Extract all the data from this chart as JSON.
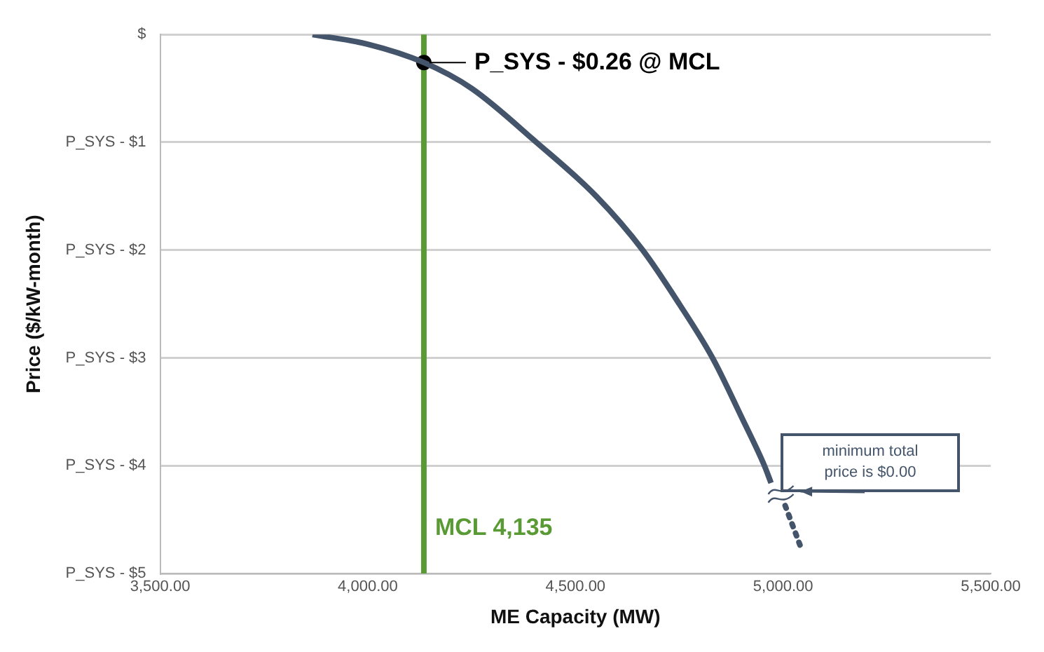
{
  "chart_data": {
    "type": "line",
    "xlabel": "ME Capacity (MW)",
    "ylabel": "Price ($/kW-month)",
    "xlim": [
      3500,
      5500
    ],
    "xticks": [
      {
        "value": 3500,
        "label": "3,500.00"
      },
      {
        "value": 4000,
        "label": "4,000.00"
      },
      {
        "value": 4500,
        "label": "4,500.00"
      },
      {
        "value": 5000,
        "label": "5,000.00"
      },
      {
        "value": 5500,
        "label": "5,500.00"
      }
    ],
    "ylim": [
      -5,
      0
    ],
    "yticks": [
      {
        "value": 0,
        "label": "$"
      },
      {
        "value": -1,
        "label": "P_SYS - $1"
      },
      {
        "value": -2,
        "label": "P_SYS - $2"
      },
      {
        "value": -3,
        "label": "P_SYS - $3"
      },
      {
        "value": -4,
        "label": "P_SYS - $4"
      },
      {
        "value": -5,
        "label": "P_SYS - $5"
      }
    ],
    "grid": "y",
    "legend": false,
    "marker": "none",
    "series": [
      {
        "type": "line",
        "color": "#44546a",
        "line_style": "solid",
        "x": [
          3867,
          4000,
          4135,
          4250,
          4406,
          4550,
          4662,
          4750,
          4830,
          4900,
          4955,
          4971
        ],
        "values": [
          0,
          -0.09,
          -0.26,
          -0.5,
          -1,
          -1.5,
          -2,
          -2.5,
          -3,
          -3.55,
          -4,
          -4.16
        ]
      },
      {
        "type": "line",
        "color": "#44546a",
        "line_style": "dotted",
        "x": [
          5005,
          5042
        ],
        "values": [
          -4.37,
          -4.75
        ]
      },
      {
        "type": "scatter",
        "color": "#000000",
        "marker": "circle",
        "x": [
          4135
        ],
        "values": [
          -0.26
        ]
      }
    ],
    "ref_lines": [
      {
        "axis": "x",
        "value": 4135,
        "label": "MCL 4,135",
        "color": "#5a9a35"
      }
    ],
    "annotations": [
      {
        "text": "P_SYS - $0.26 @ MCL",
        "x": 4135,
        "y": -0.26
      },
      "minimum total price is $0.00"
    ]
  }
}
